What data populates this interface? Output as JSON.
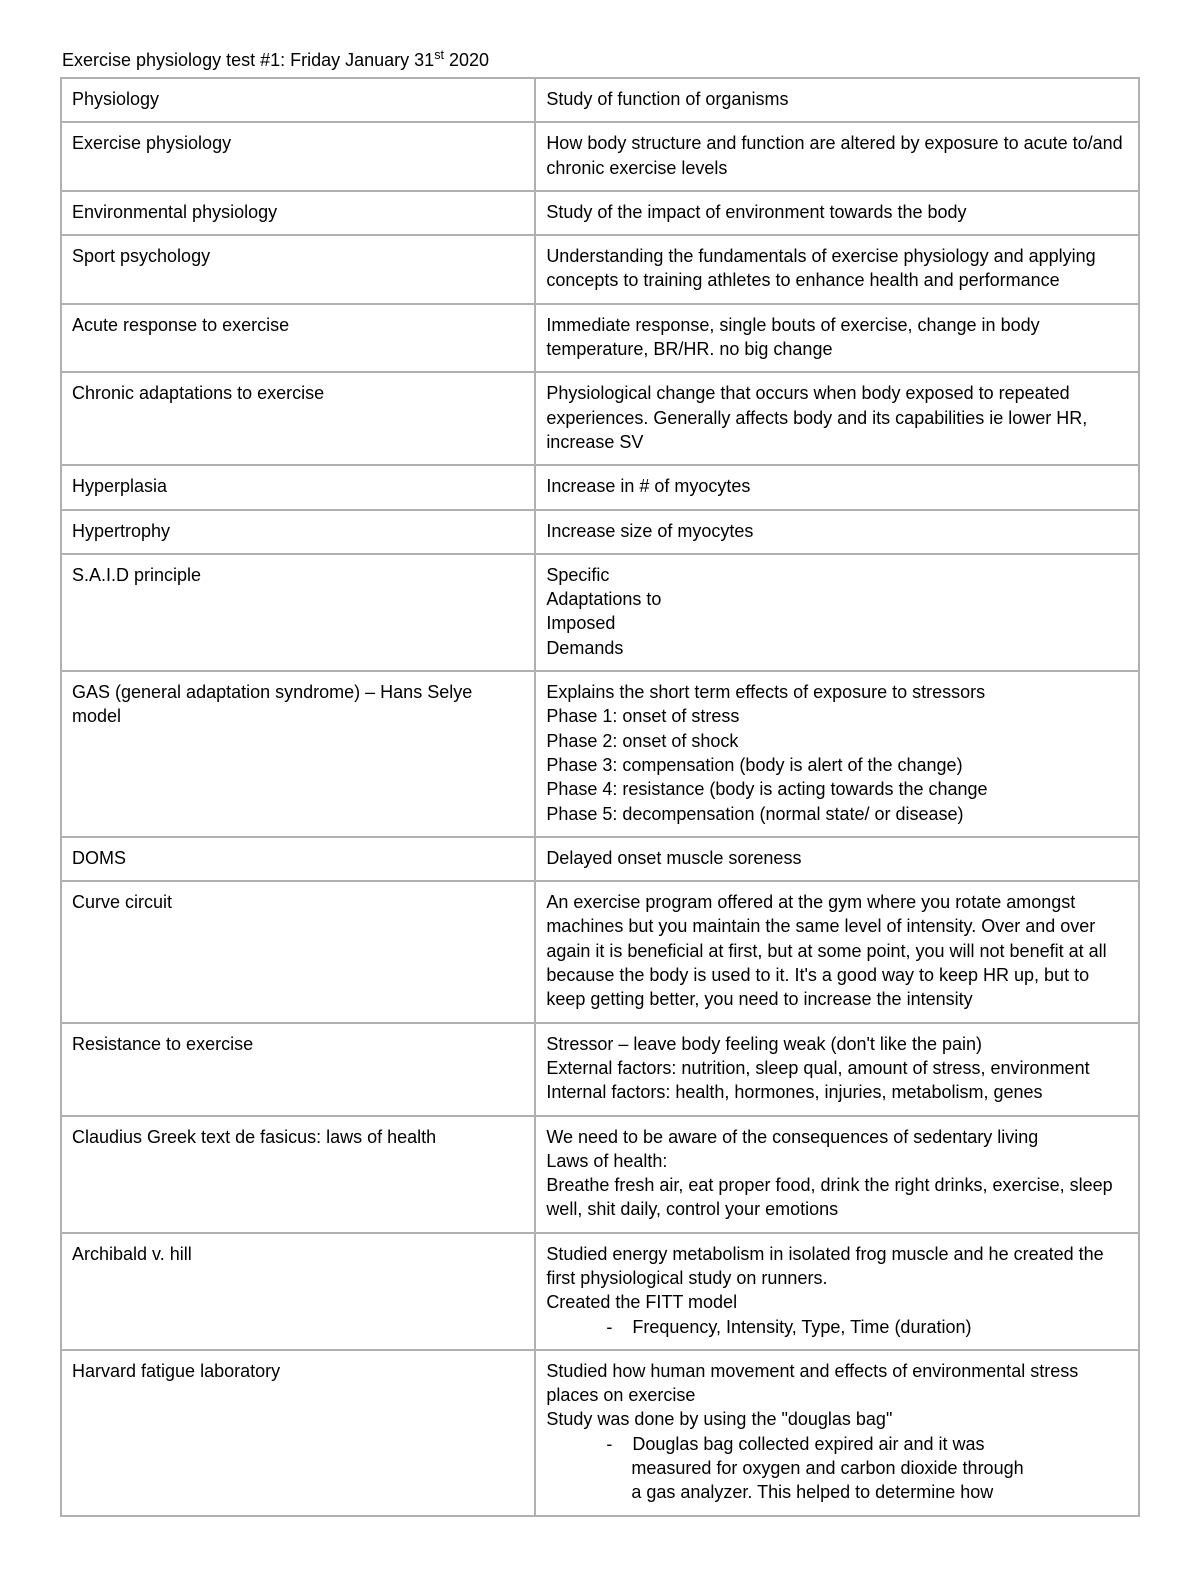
{
  "title_html": "Exercise physiology test #1: Friday January 31<sup>st</sup> 2020",
  "table": {
    "column_widths_pct": [
      44,
      56
    ],
    "border_color": "#b0b0b0",
    "background_color": "#ffffff",
    "text_color": "#000000",
    "font_size_pt": 13,
    "rows": [
      {
        "term": "Physiology",
        "def": "Study of function of organisms"
      },
      {
        "term": "Exercise physiology",
        "def": "How body structure and function are altered by exposure to acute to/and chronic exercise levels"
      },
      {
        "term": "Environmental physiology",
        "def": "Study of the impact of environment towards the body"
      },
      {
        "term": "Sport psychology",
        "def": "Understanding the fundamentals of exercise physiology and applying concepts to training athletes to enhance health and performance"
      },
      {
        "term": "Acute response to exercise",
        "def": "Immediate response, single bouts of exercise, change in body temperature, BR/HR. no big change"
      },
      {
        "term": "Chronic adaptations to exercise",
        "def": "Physiological change that occurs when body exposed to repeated experiences. Generally affects body and its capabilities ie lower HR, increase SV"
      },
      {
        "term": "Hyperplasia",
        "def": "Increase in # of myocytes"
      },
      {
        "term": "Hypertrophy",
        "def": "Increase size of myocytes"
      },
      {
        "term": "S.A.I.D principle",
        "def": "Specific\nAdaptations to\nImposed\nDemands"
      },
      {
        "term": "GAS (general adaptation syndrome) – Hans Selye model",
        "def": "Explains the short term effects of exposure to stressors\nPhase 1: onset of stress\nPhase 2: onset of shock\nPhase 3: compensation (body is alert of the change)\nPhase 4: resistance (body is acting towards the change\nPhase 5: decompensation (normal state/ or disease)"
      },
      {
        "term": "DOMS",
        "def": "Delayed onset muscle soreness"
      },
      {
        "term": "Curve circuit",
        "def": "An exercise program offered at the gym where you rotate amongst machines but you maintain the same level of intensity. Over and over again it is beneficial at first, but at some point, you will not benefit at all because the body is used to it. It's a good way to keep HR up, but to keep getting better, you need to increase the intensity"
      },
      {
        "term": "Resistance to exercise",
        "def": "Stressor – leave body feeling weak (don't like the pain)\nExternal factors: nutrition, sleep qual, amount of stress, environment\nInternal factors: health, hormones, injuries, metabolism, genes"
      },
      {
        "term": "Claudius Greek text de fasicus: laws of health",
        "def": "We need to be aware of the consequences of sedentary living\nLaws of health:\nBreathe fresh air, eat proper food, drink the right drinks, exercise, sleep well, shit daily, control your emotions"
      },
      {
        "term": "Archibald v. hill",
        "def": "Studied energy metabolism in isolated frog muscle and he created the first physiological study on runners.\nCreated the FITT model\n            -    Frequency, Intensity, Type, Time (duration)"
      },
      {
        "term": "Harvard fatigue laboratory",
        "def": "Studied how human movement and effects of environmental stress places on exercise\nStudy was done by using the \"douglas bag\"\n            -    Douglas bag collected expired air and it was\n                 measured for oxygen and carbon dioxide through\n                 a gas analyzer. This helped to determine how"
      }
    ]
  }
}
